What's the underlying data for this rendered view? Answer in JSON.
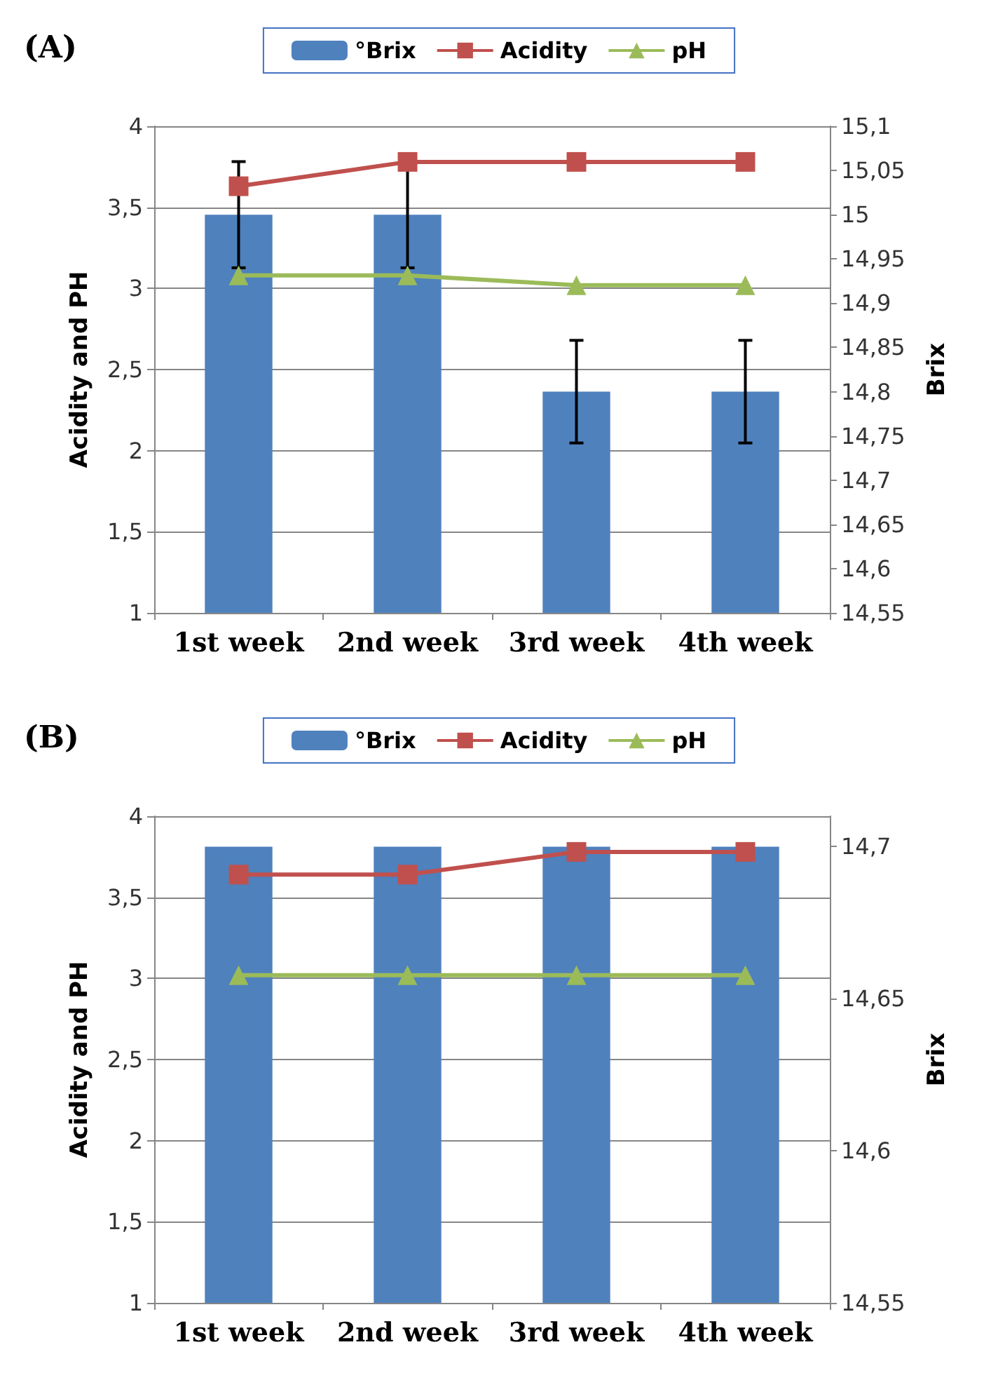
{
  "chart_data": [
    {
      "type": "bar",
      "title": "(A)",
      "categories": [
        "1st week",
        "2nd week",
        "3rd week",
        "4th week"
      ],
      "ylabel": "Acidity and PH",
      "y2label": "Brix",
      "series": [
        {
          "name": "°Brix",
          "axis": "y2",
          "color": "#4f81bd",
          "values": [
            15.0,
            15.0,
            14.8,
            14.8
          ],
          "errors": [
            0.06,
            0.06,
            0.058,
            0.058
          ]
        },
        {
          "name": "Acidity",
          "type": "line",
          "marker": "square",
          "color": "#c0504d",
          "values": [
            3.63,
            3.78,
            3.78,
            3.78
          ]
        },
        {
          "name": "pH",
          "type": "line",
          "marker": "triangle",
          "color": "#9bbb59",
          "values": [
            3.08,
            3.08,
            3.02,
            3.02
          ]
        }
      ],
      "ylim": [
        1,
        4
      ],
      "yticks": [
        1,
        {
          "value": 1.5,
          "label": "1,5"
        },
        2,
        {
          "value": 2.5,
          "label": "2,5"
        },
        3,
        {
          "value": 3.5,
          "label": "3,5"
        },
        4
      ],
      "y2lim": [
        14.55,
        15.1
      ],
      "y2ticks": [
        {
          "value": 14.55,
          "label": "14,55"
        },
        {
          "value": 14.6,
          "label": "14,6"
        },
        {
          "value": 14.65,
          "label": "14,65"
        },
        {
          "value": 14.7,
          "label": "14,7"
        },
        {
          "value": 14.75,
          "label": "14,75"
        },
        {
          "value": 14.8,
          "label": "14,8"
        },
        {
          "value": 14.85,
          "label": "14,85"
        },
        {
          "value": 14.9,
          "label": "14,9"
        },
        {
          "value": 14.95,
          "label": "14,95"
        },
        15,
        {
          "value": 15.05,
          "label": "15,05"
        },
        {
          "value": 15.1,
          "label": "15,1"
        }
      ],
      "grid": "y",
      "legend": "top"
    },
    {
      "type": "bar",
      "title": "(B)",
      "categories": [
        "1st week",
        "2nd week",
        "3rd week",
        "4th week"
      ],
      "ylabel": "Acidity and PH",
      "y2label": "Brix",
      "series": [
        {
          "name": "°Brix",
          "axis": "y2",
          "color": "#4f81bd",
          "values": [
            14.7,
            14.7,
            14.7,
            14.7
          ]
        },
        {
          "name": "Acidity",
          "type": "line",
          "marker": "square",
          "color": "#c0504d",
          "values": [
            3.64,
            3.64,
            3.78,
            3.78
          ]
        },
        {
          "name": "pH",
          "type": "line",
          "marker": "triangle",
          "color": "#9bbb59",
          "values": [
            3.02,
            3.02,
            3.02,
            3.02
          ]
        }
      ],
      "ylim": [
        1,
        4
      ],
      "yticks": [
        1,
        {
          "value": 1.5,
          "label": "1,5"
        },
        2,
        {
          "value": 2.5,
          "label": "2,5"
        },
        3,
        {
          "value": 3.5,
          "label": "3,5"
        },
        4
      ],
      "y2lim": [
        14.55,
        14.71
      ],
      "y2ticks": [
        {
          "value": 14.55,
          "label": "14,55"
        },
        {
          "value": 14.6,
          "label": "14,6"
        },
        {
          "value": 14.65,
          "label": "14,65"
        },
        {
          "value": 14.7,
          "label": "14,7"
        }
      ],
      "grid": "y",
      "legend": "top"
    }
  ]
}
